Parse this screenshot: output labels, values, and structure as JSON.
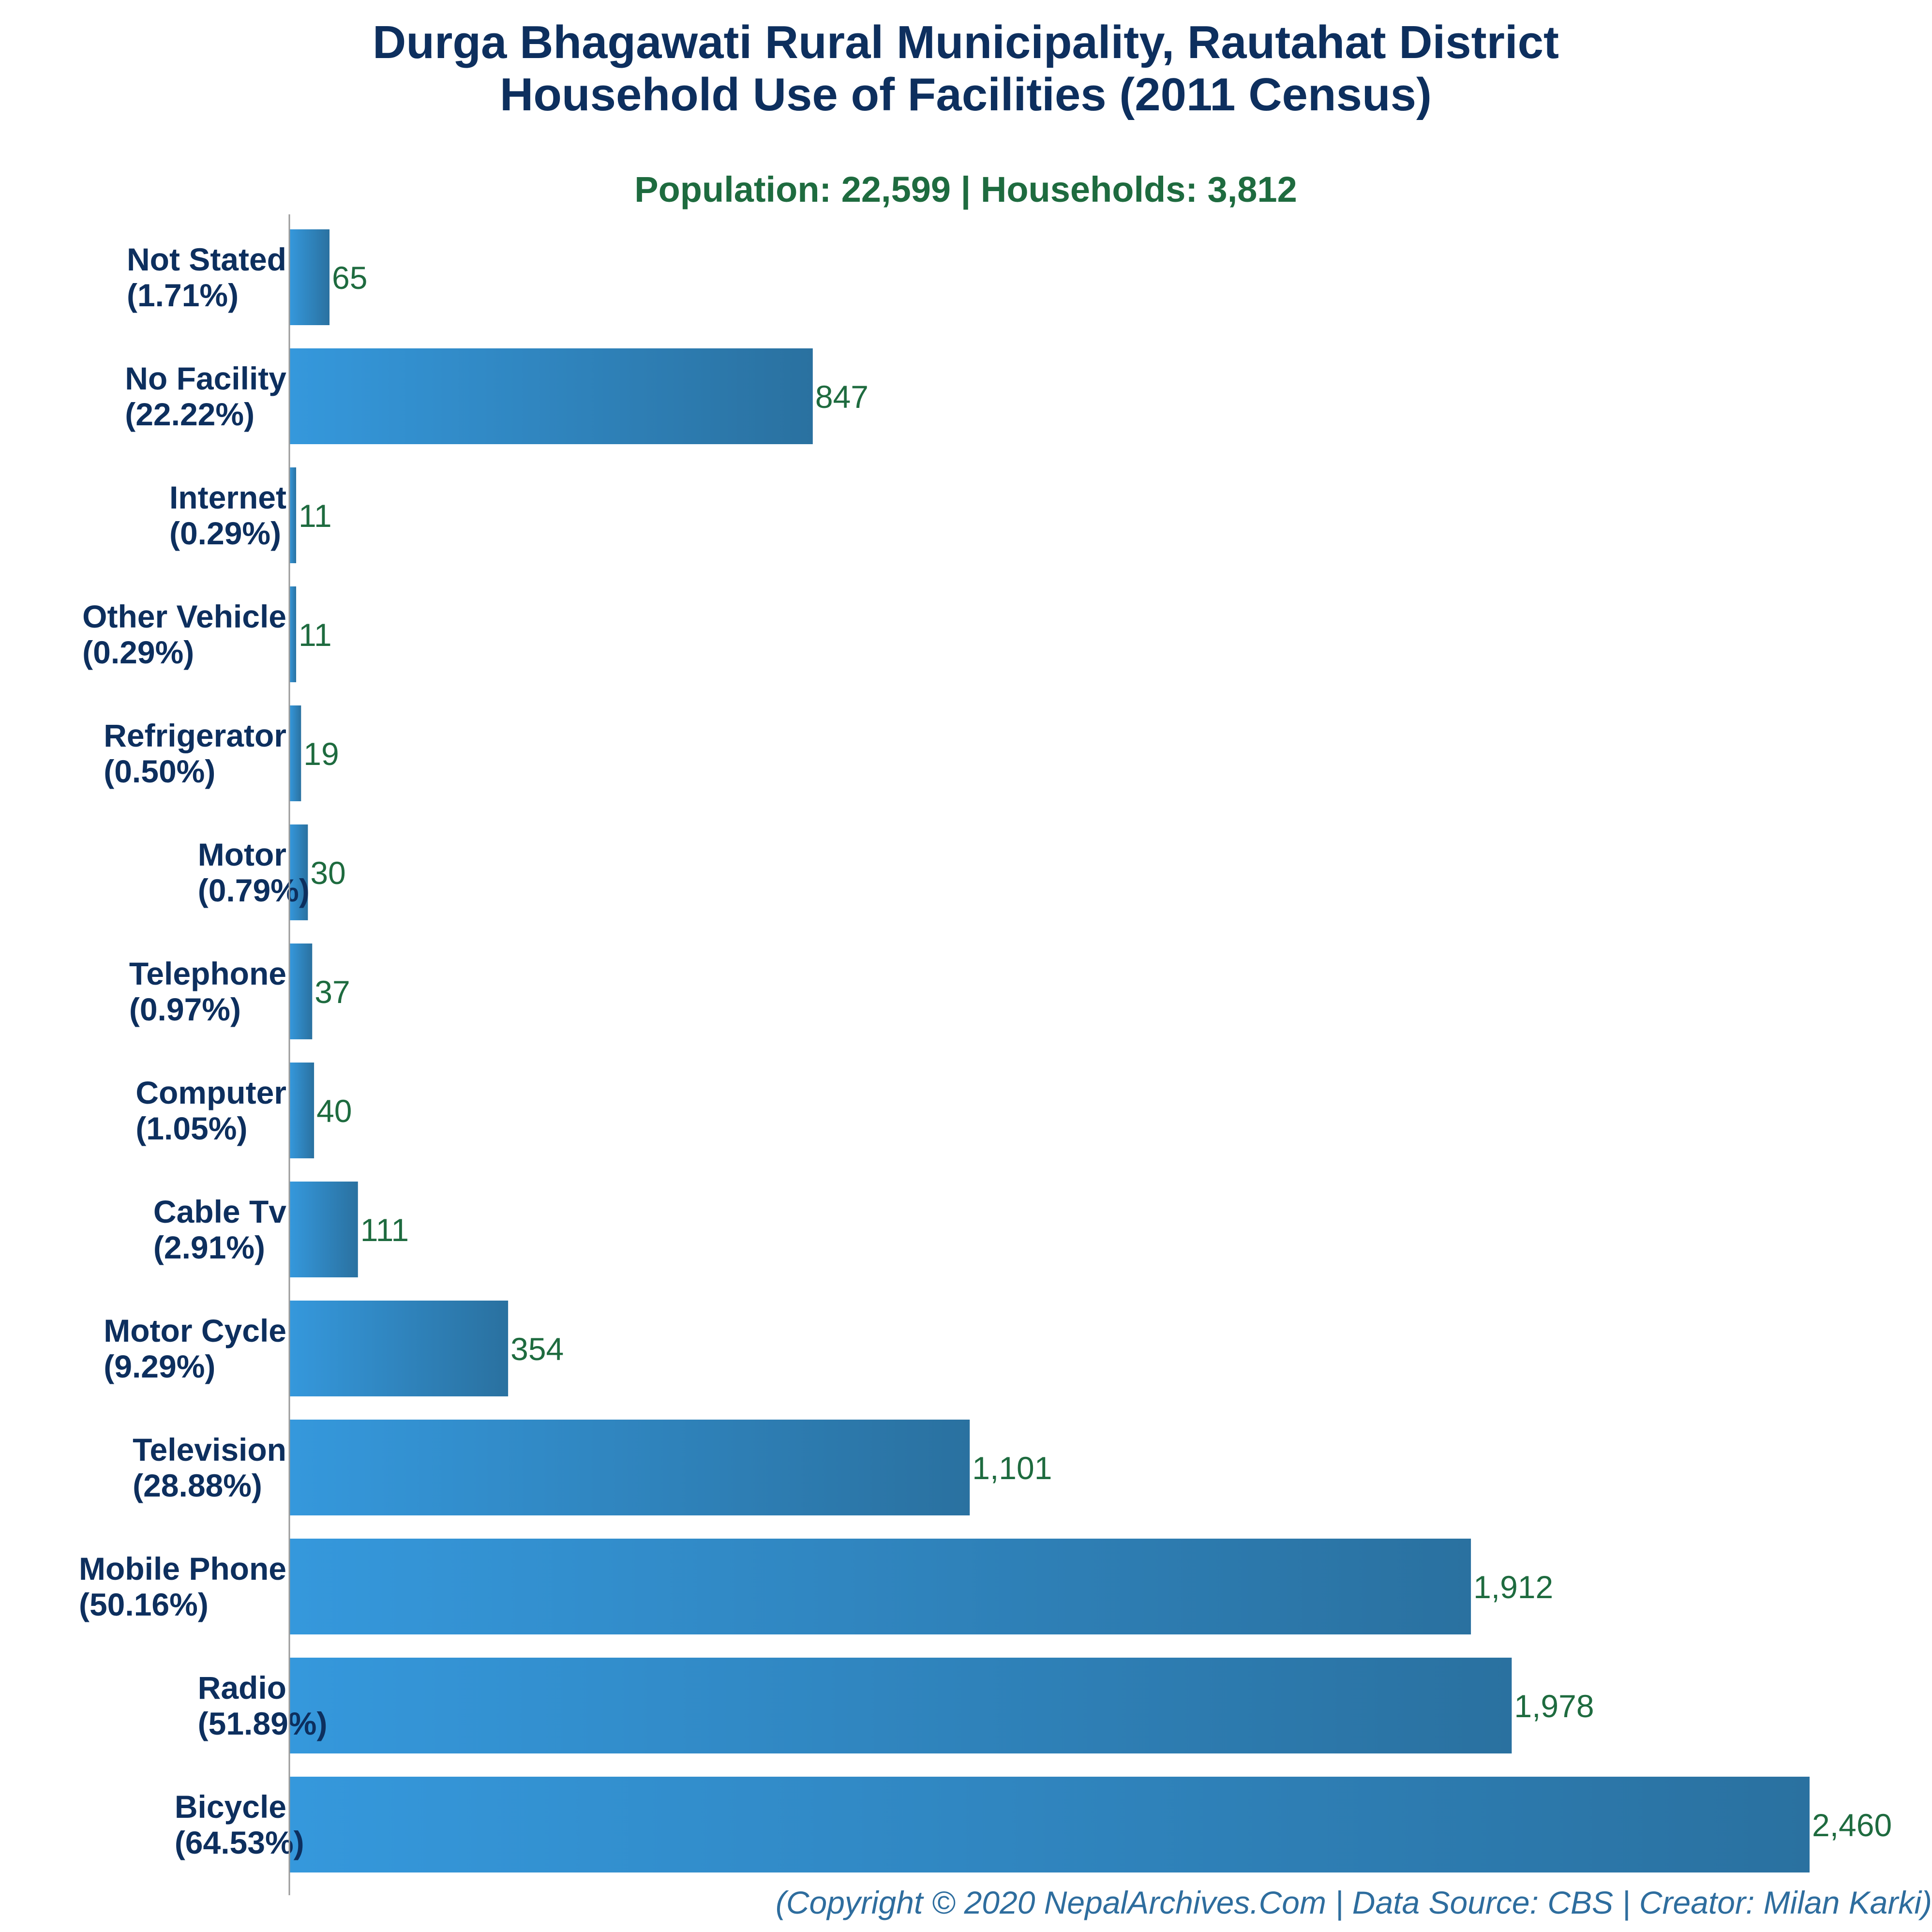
{
  "chart_data": {
    "type": "bar",
    "orientation": "horizontal",
    "title": [
      "Durga Bhagawati Rural Municipality, Rautahat District",
      "Household Use of Facilities (2011 Census)"
    ],
    "subtitle": "Population: 22,599 | Households: 3,812",
    "categories": [
      "Not Stated",
      "No Facility",
      "Internet",
      "Other Vehicle",
      "Refrigerator",
      "Motor",
      "Telephone",
      "Computer",
      "Cable Tv",
      "Motor Cycle",
      "Television",
      "Mobile Phone",
      "Radio",
      "Bicycle"
    ],
    "percent_labels": [
      "(1.71%)",
      "(22.22%)",
      "(0.29%)",
      "(0.29%)",
      "(0.50%)",
      "(0.79%)",
      "(0.97%)",
      "(1.05%)",
      "(2.91%)",
      "(9.29%)",
      "(28.88%)",
      "(50.16%)",
      "(51.89%)",
      "(64.53%)"
    ],
    "values": [
      65,
      847,
      11,
      11,
      19,
      30,
      37,
      40,
      111,
      354,
      1101,
      1912,
      1978,
      2460
    ],
    "value_labels": [
      "65",
      "847",
      "11",
      "11",
      "19",
      "30",
      "37",
      "40",
      "111",
      "354",
      "1,101",
      "1,912",
      "1,978",
      "2,460"
    ],
    "xlim": [
      0,
      2460
    ],
    "grid": false,
    "legend": "none",
    "colors": {
      "bar_light": "#3598dc",
      "bar_dark": "#2a71a0",
      "title": "#0d2f5e",
      "subtitle": "#1e6b3f",
      "value_label": "#1e6b3f",
      "footer": "#2e6d9e",
      "axis": "#9a9a9a"
    }
  },
  "footer": "(Copyright © 2020 NepalArchives.Com | Data Source: CBS | Creator: Milan Karki)"
}
